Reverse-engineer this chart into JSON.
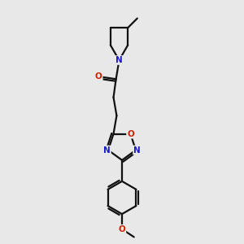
{
  "bg_color": "#e8e8e8",
  "bond_color": "#111111",
  "bond_width": 1.6,
  "atom_colors": {
    "N": "#1a1acc",
    "O": "#cc2200",
    "C": "#111111"
  },
  "font_size_atom": 7.5,
  "fig_size": [
    3.0,
    3.0
  ],
  "dpi": 100
}
